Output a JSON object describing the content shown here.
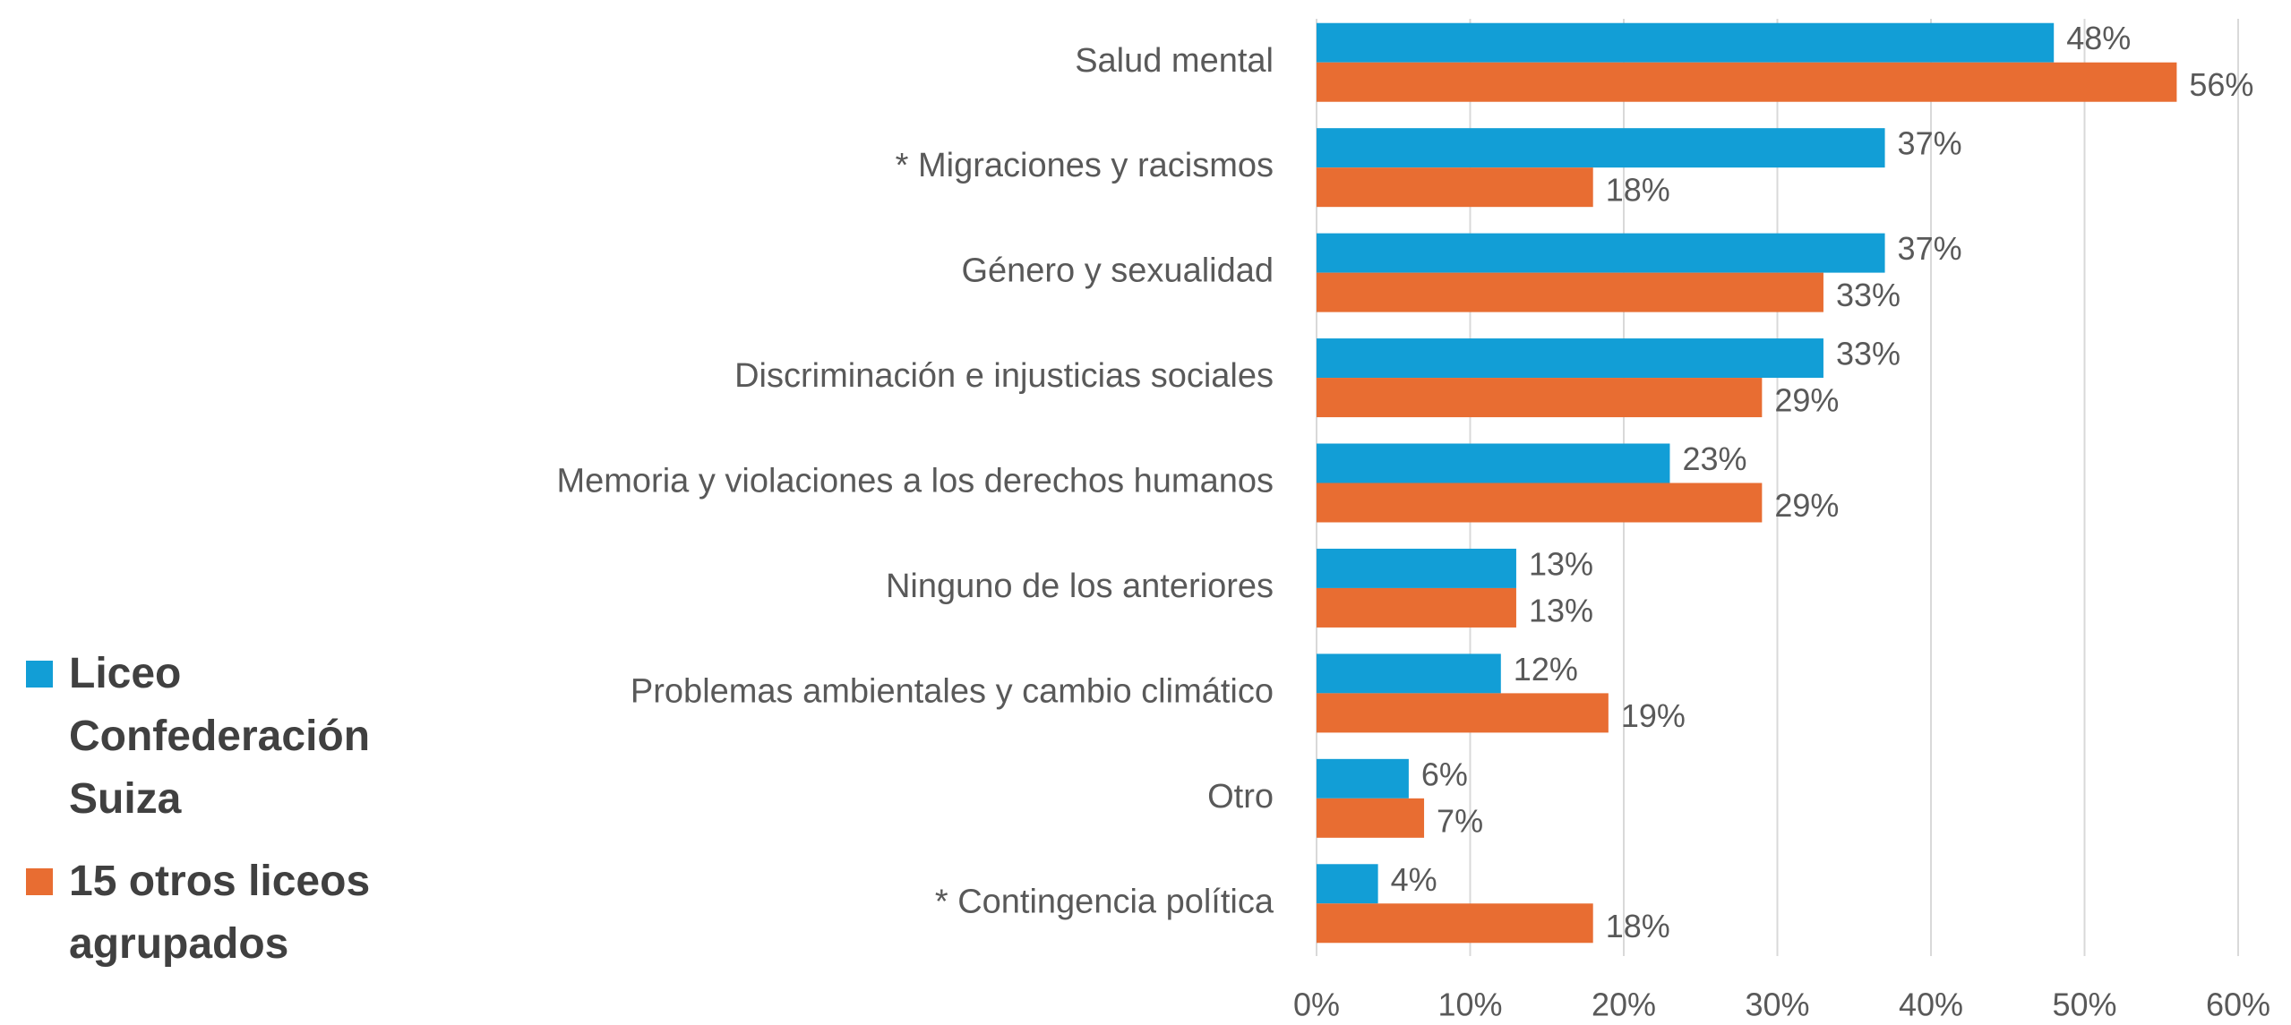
{
  "chart_data": {
    "type": "barh",
    "categories": [
      "Salud mental",
      "* Migraciones y racismos",
      "Género y sexualidad",
      "Discriminación e injusticias sociales",
      "Memoria y violaciones a los derechos humanos",
      "Ninguno de los anteriores",
      "Problemas ambientales y cambio climático",
      "Otro",
      "* Contingencia política"
    ],
    "series": [
      {
        "name": "Liceo Confederación Suiza",
        "color": "#129ED6",
        "values": [
          48,
          37,
          37,
          33,
          23,
          13,
          12,
          6,
          4
        ],
        "value_labels": [
          "48%",
          "37%",
          "37%",
          "33%",
          "23%",
          "13%",
          "12%",
          "6%",
          "4%"
        ]
      },
      {
        "name": "15 otros liceos agrupados",
        "color": "#E86D32",
        "values": [
          56,
          18,
          33,
          29,
          29,
          13,
          19,
          7,
          18
        ],
        "value_labels": [
          "56%",
          "18%",
          "33%",
          "29%",
          "29%",
          "13%",
          "19%",
          "7%",
          "18%"
        ]
      }
    ],
    "xlim": [
      0,
      60
    ],
    "xticks": [
      {
        "value": 0,
        "label": "0%"
      },
      {
        "value": 10,
        "label": "10%"
      },
      {
        "value": 20,
        "label": "20%"
      },
      {
        "value": 30,
        "label": "30%"
      },
      {
        "value": 40,
        "label": "40%"
      },
      {
        "value": 50,
        "label": "50%"
      },
      {
        "value": 60,
        "label": "60%"
      }
    ],
    "grid": true,
    "legend": "left"
  }
}
